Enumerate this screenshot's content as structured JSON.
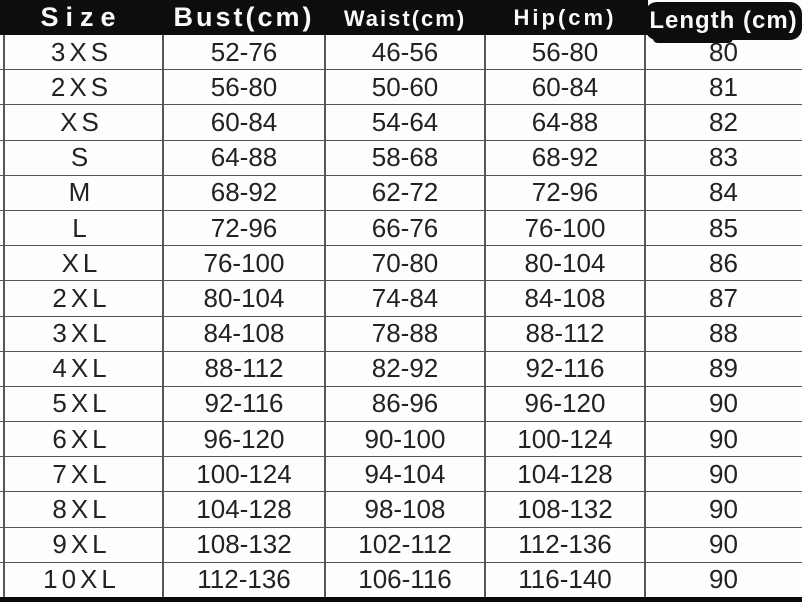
{
  "chart_data": {
    "type": "table",
    "title": "",
    "columns": [
      "Size",
      "Bust(cm)",
      "Waist(cm)",
      "Hip(cm)",
      "Length (cm)"
    ],
    "rows": [
      [
        "3XS",
        "52-76",
        "46-56",
        "56-80",
        "80"
      ],
      [
        "2XS",
        "56-80",
        "50-60",
        "60-84",
        "81"
      ],
      [
        "XS",
        "60-84",
        "54-64",
        "64-88",
        "82"
      ],
      [
        "S",
        "64-88",
        "58-68",
        "68-92",
        "83"
      ],
      [
        "M",
        "68-92",
        "62-72",
        "72-96",
        "84"
      ],
      [
        "L",
        "72-96",
        "66-76",
        "76-100",
        "85"
      ],
      [
        "XL",
        "76-100",
        "70-80",
        "80-104",
        "86"
      ],
      [
        "2XL",
        "80-104",
        "74-84",
        "84-108",
        "87"
      ],
      [
        "3XL",
        "84-108",
        "78-88",
        "88-112",
        "88"
      ],
      [
        "4XL",
        "88-112",
        "82-92",
        "92-116",
        "89"
      ],
      [
        "5XL",
        "92-116",
        "86-96",
        "96-120",
        "90"
      ],
      [
        "6XL",
        "96-120",
        "90-100",
        "100-124",
        "90"
      ],
      [
        "7XL",
        "100-124",
        "94-104",
        "104-128",
        "90"
      ],
      [
        "8XL",
        "104-128",
        "98-108",
        "108-132",
        "90"
      ],
      [
        "9XL",
        "108-132",
        "102-112",
        "112-136",
        "90"
      ],
      [
        "10XL",
        "112-136",
        "106-116",
        "116-140",
        "90"
      ]
    ]
  },
  "colors": {
    "header_bg": "#0d0d0d",
    "header_text": "#fafafa",
    "grid_line": "#565656",
    "body_text": "#222222",
    "background": "#fefefe"
  }
}
